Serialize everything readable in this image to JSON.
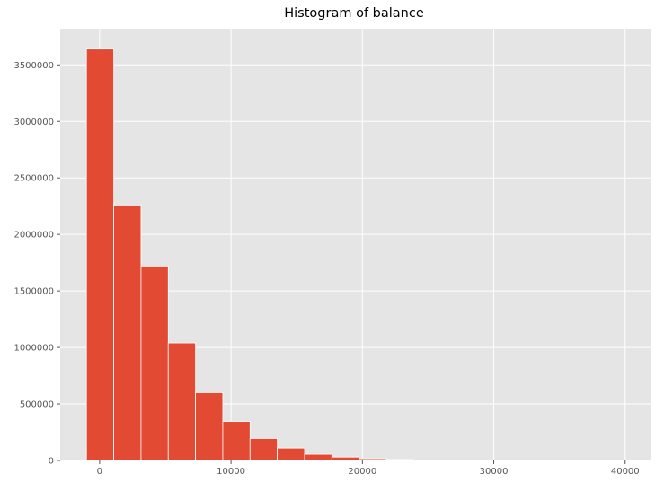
{
  "chart_data": {
    "type": "bar",
    "title": "Histogram of balance",
    "xlabel": "",
    "ylabel": "",
    "style": "ggplot",
    "grid": true,
    "legend": "none",
    "xlim": [
      -3000,
      42000
    ],
    "ylim": [
      0,
      3820000
    ],
    "xticks": [
      0,
      10000,
      20000,
      30000,
      40000
    ],
    "yticks": [
      0,
      500000,
      1000000,
      1500000,
      2000000,
      2500000,
      3000000,
      3500000
    ],
    "bin_edges": [
      -1000,
      1075,
      3150,
      5225,
      7300,
      9375,
      11450,
      13525,
      15600,
      17675,
      19750,
      21825,
      23900,
      25975,
      28050,
      30125,
      32200,
      34275,
      36350,
      38425,
      40500
    ],
    "counts": [
      3640000,
      2260000,
      1720000,
      1040000,
      600000,
      345000,
      195000,
      110000,
      55000,
      30000,
      15000,
      8000,
      3000,
      1500,
      700,
      300,
      150,
      80,
      40,
      20
    ],
    "colors": {
      "bar": "#E24A33",
      "background": "#E5E5E5",
      "grid": "#FFFFFF",
      "bar_edge": "#FFFFFF"
    }
  }
}
